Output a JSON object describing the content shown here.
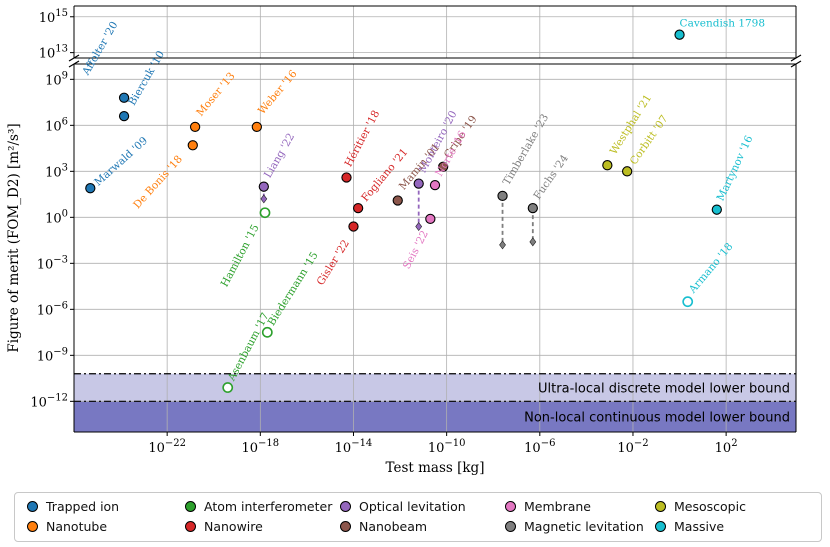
{
  "chart_data": {
    "type": "scatter",
    "xlabel": "Test mass [kg]",
    "ylabel": "Figure of merit (FOM_D2) [m²/s³]",
    "xscale": "log",
    "yscale": "log",
    "xlim_exp": [
      -26,
      5
    ],
    "ylim_lower_exp": [
      -14,
      10
    ],
    "ylim_upper_exp": [
      12.7,
      15.6
    ],
    "x_ticks": [
      {
        "exp": -22,
        "label": "10−22"
      },
      {
        "exp": -18,
        "label": "10−18"
      },
      {
        "exp": -14,
        "label": "10−14"
      },
      {
        "exp": -10,
        "label": "10−10"
      },
      {
        "exp": -6,
        "label": "10−6"
      },
      {
        "exp": -2,
        "label": "10−2"
      },
      {
        "exp": 2,
        "label": "102"
      }
    ],
    "y_ticks_lower": [
      {
        "exp": -12,
        "label": "10−12"
      },
      {
        "exp": -9,
        "label": "10−9"
      },
      {
        "exp": -6,
        "label": "10−6"
      },
      {
        "exp": -3,
        "label": "10−3"
      },
      {
        "exp": 0,
        "label": "100"
      },
      {
        "exp": 3,
        "label": "103"
      },
      {
        "exp": 6,
        "label": "106"
      },
      {
        "exp": 9,
        "label": "109"
      }
    ],
    "y_ticks_upper": [
      {
        "exp": 13,
        "label": "1013"
      },
      {
        "exp": 15,
        "label": "1015"
      }
    ],
    "bands": [
      {
        "label": "Ultra-local discrete model lower bound",
        "y_exp_from": -12,
        "y_exp_to": -10.2,
        "color": "#c8c8e6"
      },
      {
        "label": "Non-local continuous model lower bound",
        "y_exp_from": -14,
        "y_exp_to": -12,
        "color": "#7878c2"
      }
    ],
    "series": [
      {
        "name": "Trapped ion",
        "color": "#1f77b4",
        "points": [
          {
            "label": "Affolter '20",
            "x_exp": -23.85,
            "y_exp": 7.8
          },
          {
            "label": "Biercuk '10",
            "x_exp": -23.85,
            "y_exp": 6.6
          },
          {
            "label": "Marwald '09",
            "x_exp": -25.3,
            "y_exp": 1.9
          }
        ]
      },
      {
        "name": "Nanotube",
        "color": "#ff7f0e",
        "points": [
          {
            "label": "Moser '13",
            "x_exp": -20.8,
            "y_exp": 5.9
          },
          {
            "label": "De Bonis '18",
            "x_exp": -20.9,
            "y_exp": 4.7
          },
          {
            "label": "Weber '16",
            "x_exp": -18.15,
            "y_exp": 5.9
          }
        ]
      },
      {
        "name": "Atom interferometer",
        "color": "#2ca02c",
        "points": [
          {
            "label": "Hamilton '15",
            "x_exp": -17.8,
            "y_exp": 0.3,
            "open": true
          },
          {
            "label": "Biedermann '15",
            "x_exp": -17.7,
            "y_exp": -7.5,
            "open": true
          },
          {
            "label": "Asenbaum '17",
            "x_exp": -19.4,
            "y_exp": -11.1,
            "open": true
          }
        ]
      },
      {
        "name": "Nanowire",
        "color": "#d62728",
        "points": [
          {
            "label": "Héritier '18",
            "x_exp": -14.3,
            "y_exp": 2.6
          },
          {
            "label": "Fogliano '21",
            "x_exp": -13.8,
            "y_exp": 0.6
          },
          {
            "label": "Gisler '22",
            "x_exp": -14.0,
            "y_exp": -0.6
          }
        ]
      },
      {
        "name": "Optical levitation",
        "color": "#9467bd",
        "points": [
          {
            "label": "Liang '22",
            "x_exp": -17.85,
            "y_exp": 2.0,
            "arrow_to": 1.2
          },
          {
            "label": "Monteiro '20",
            "x_exp": -11.2,
            "y_exp": 2.2,
            "arrow_to": -0.6
          }
        ]
      },
      {
        "name": "Nanobeam",
        "color": "#8c564b",
        "points": [
          {
            "label": "Mamin '01",
            "x_exp": -12.1,
            "y_exp": 1.1
          },
          {
            "label": "Cripe '19",
            "x_exp": -10.15,
            "y_exp": 3.3
          }
        ]
      },
      {
        "name": "Membrane",
        "color": "#e377c2",
        "points": [
          {
            "label": "Norte '16",
            "x_exp": -10.5,
            "y_exp": 2.1
          },
          {
            "label": "Seis '22",
            "x_exp": -10.7,
            "y_exp": -0.1
          }
        ]
      },
      {
        "name": "Magnetic levitation",
        "color": "#7f7f7f",
        "points": [
          {
            "label": "Timberlake '23",
            "x_exp": -7.6,
            "y_exp": 1.4,
            "arrow_to": -1.8
          },
          {
            "label": "Fuchs '24",
            "x_exp": -6.3,
            "y_exp": 0.6,
            "arrow_to": -1.6
          }
        ]
      },
      {
        "name": "Mesoscopic",
        "color": "#bcbd22",
        "points": [
          {
            "label": "Westphal '21",
            "x_exp": -3.1,
            "y_exp": 3.4
          },
          {
            "label": "Corbitt '07",
            "x_exp": -2.25,
            "y_exp": 3.0
          }
        ]
      },
      {
        "name": "Massive",
        "color": "#17becf",
        "points": [
          {
            "label": "Cavendish 1798",
            "x_exp": 0.0,
            "y_exp": 14.0
          },
          {
            "label": "Martynov '16",
            "x_exp": 1.6,
            "y_exp": 0.5
          },
          {
            "label": "Armano '18",
            "x_exp": 0.35,
            "y_exp": -5.5,
            "open": true
          }
        ]
      }
    ],
    "legend_position": "bottom",
    "grid": true
  }
}
